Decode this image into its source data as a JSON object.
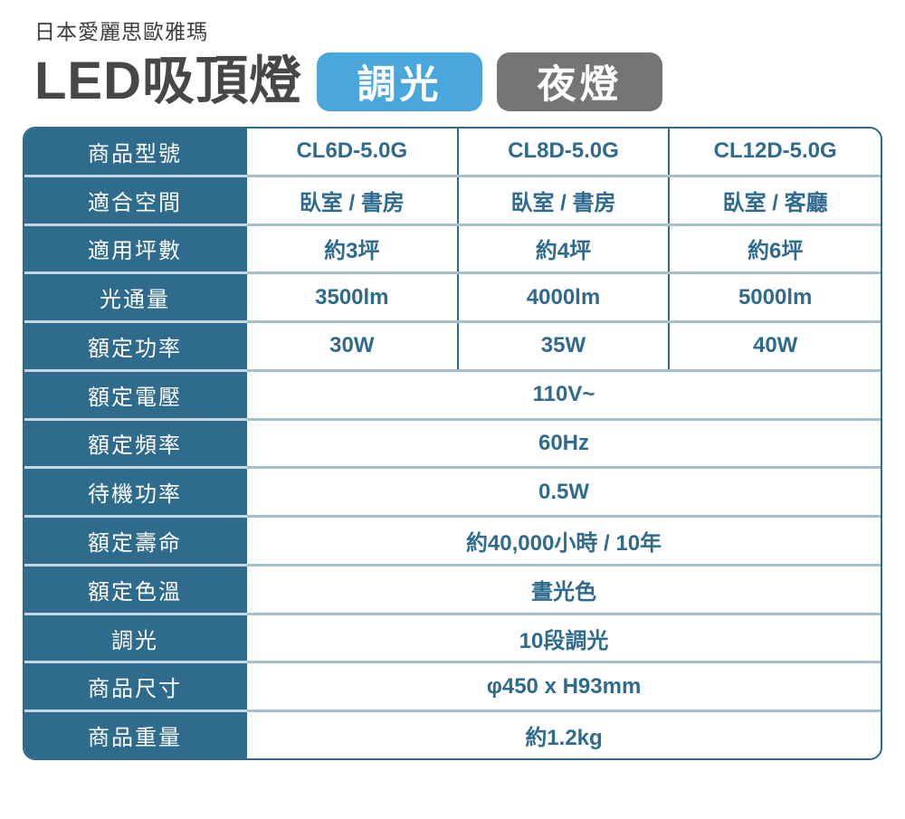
{
  "header": {
    "brand": "日本愛麗思歐雅瑪",
    "title": "LED吸頂燈",
    "badges": [
      {
        "label": "調光",
        "color": "#4aa7dc"
      },
      {
        "label": "夜燈",
        "color": "#757575"
      }
    ]
  },
  "colors": {
    "label_column_bg": "#2e6b8c",
    "label_text": "#ffffff",
    "value_text": "#2e6b8e",
    "row_divider": "#a6bfcd",
    "table_border": "#2e6b8c",
    "title_text": "#474747"
  },
  "table": {
    "rows": [
      {
        "label": "商品型號",
        "values": [
          "CL6D-5.0G",
          "CL8D-5.0G",
          "CL12D-5.0G"
        ]
      },
      {
        "label": "適合空間",
        "values": [
          "臥室 / 書房",
          "臥室 / 書房",
          "臥室 / 客廳"
        ]
      },
      {
        "label": "適用坪數",
        "values": [
          "約3坪",
          "約4坪",
          "約6坪"
        ]
      },
      {
        "label": "光通量",
        "values": [
          "3500lm",
          "4000lm",
          "5000lm"
        ]
      },
      {
        "label": "額定功率",
        "values": [
          "30W",
          "35W",
          "40W"
        ]
      },
      {
        "label": "額定電壓",
        "values": [
          "110V~"
        ]
      },
      {
        "label": "額定頻率",
        "values": [
          "60Hz"
        ]
      },
      {
        "label": "待機功率",
        "values": [
          "0.5W"
        ]
      },
      {
        "label": "額定壽命",
        "values": [
          "約40,000小時 / 10年"
        ]
      },
      {
        "label": "額定色溫",
        "values": [
          "晝光色"
        ]
      },
      {
        "label": "調光",
        "values": [
          "10段調光"
        ]
      },
      {
        "label": "商品尺寸",
        "values": [
          "φ450 x H93mm"
        ]
      },
      {
        "label": "商品重量",
        "values": [
          "約1.2kg"
        ]
      }
    ]
  }
}
